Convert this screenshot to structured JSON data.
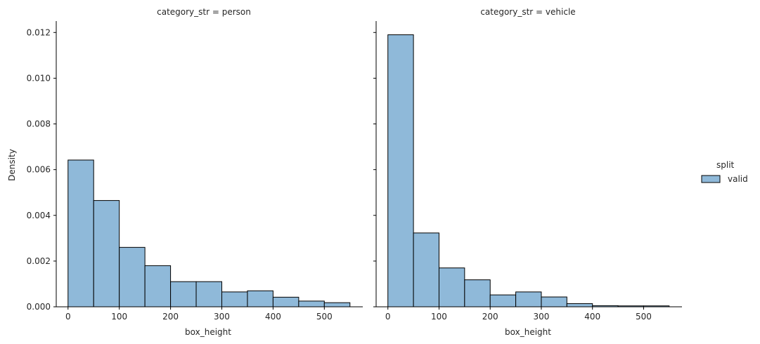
{
  "chart_data": [
    {
      "type": "bar",
      "title": "category_str = person",
      "xlabel": "box_height",
      "ylabel": "Density",
      "xlim": [
        -23,
        575
      ],
      "ylim": [
        0,
        0.0125
      ],
      "xticks": [
        0,
        100,
        200,
        300,
        400,
        500
      ],
      "yticks": [
        0.0,
        0.002,
        0.004,
        0.006,
        0.008,
        0.01,
        0.012
      ],
      "ytick_labels": [
        "0.000",
        "0.002",
        "0.004",
        "0.006",
        "0.008",
        "0.010",
        "0.012"
      ],
      "bin_edges": [
        0,
        50,
        100,
        150,
        200,
        250,
        300,
        350,
        400,
        450,
        500,
        550
      ],
      "values": [
        0.00642,
        0.00465,
        0.0026,
        0.0018,
        0.0011,
        0.0011,
        0.00065,
        0.0007,
        0.00042,
        0.00025,
        0.00018
      ],
      "series_name": "valid"
    },
    {
      "type": "bar",
      "title": "category_str = vehicle",
      "xlabel": "box_height",
      "ylabel": "",
      "xlim": [
        -23,
        575
      ],
      "ylim": [
        0,
        0.0125
      ],
      "xticks": [
        0,
        100,
        200,
        300,
        400,
        500
      ],
      "bin_edges": [
        0,
        50,
        100,
        150,
        200,
        250,
        300,
        350,
        400,
        450,
        500,
        550
      ],
      "values": [
        0.0119,
        0.00323,
        0.0017,
        0.00118,
        0.00052,
        0.00065,
        0.00043,
        0.00014,
        5e-05,
        4e-05,
        4e-05
      ],
      "series_name": "valid"
    }
  ],
  "legend": {
    "title": "split",
    "entries": [
      {
        "label": "valid",
        "color": "#8fb9d9"
      }
    ]
  },
  "colors": {
    "bar_fill": "#8fb9d9",
    "bar_edge": "#000000",
    "axis": "#000000"
  }
}
